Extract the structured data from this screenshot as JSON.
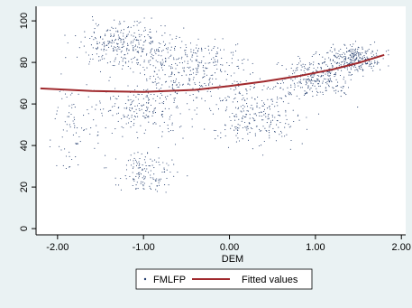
{
  "chart_data": {
    "type": "scatter",
    "title": "",
    "xlabel": "DEM",
    "ylabel": "",
    "xlim": [
      -2.25,
      2.05
    ],
    "ylim": [
      -3,
      107
    ],
    "x_ticks": [
      -2.0,
      -1.0,
      0.0,
      1.0,
      2.0
    ],
    "x_tick_labels": [
      "-2.00",
      "-1.00",
      "0.00",
      "1.00",
      "2.00"
    ],
    "y_ticks": [
      0,
      20,
      40,
      60,
      80,
      100
    ],
    "y_tick_labels": [
      "0",
      "20",
      "40",
      "60",
      "80",
      "100"
    ],
    "grid": false,
    "legend": "bottom-center",
    "series": [
      {
        "name": "FMLFP",
        "kind": "scatter",
        "color": "#1f3a6b",
        "clusters": [
          {
            "x_center": -1.2,
            "y_center": 88,
            "x_spread": 0.45,
            "y_spread": 9,
            "count": 320
          },
          {
            "x_center": -0.4,
            "y_center": 76,
            "x_spread": 0.5,
            "y_spread": 13,
            "count": 320
          },
          {
            "x_center": -1.0,
            "y_center": 58,
            "x_spread": 0.5,
            "y_spread": 11,
            "count": 220
          },
          {
            "x_center": -1.0,
            "y_center": 27,
            "x_spread": 0.3,
            "y_spread": 8,
            "count": 140
          },
          {
            "x_center": 0.3,
            "y_center": 55,
            "x_spread": 0.45,
            "y_spread": 13,
            "count": 260
          },
          {
            "x_center": 1.0,
            "y_center": 73,
            "x_spread": 0.35,
            "y_spread": 8,
            "count": 280
          },
          {
            "x_center": 1.45,
            "y_center": 82,
            "x_spread": 0.25,
            "y_spread": 5,
            "count": 260
          },
          {
            "x_center": -1.85,
            "y_center": 50,
            "x_spread": 0.2,
            "y_spread": 22,
            "count": 70
          }
        ]
      },
      {
        "name": "Fitted values",
        "kind": "line",
        "color": "#a0292d",
        "x": [
          -2.2,
          -1.6,
          -1.0,
          -0.4,
          0.0,
          0.4,
          0.8,
          1.2,
          1.5,
          1.8
        ],
        "y": [
          67.5,
          66.2,
          65.8,
          66.8,
          68.6,
          70.8,
          73.4,
          76.6,
          79.8,
          83.6
        ]
      }
    ]
  }
}
